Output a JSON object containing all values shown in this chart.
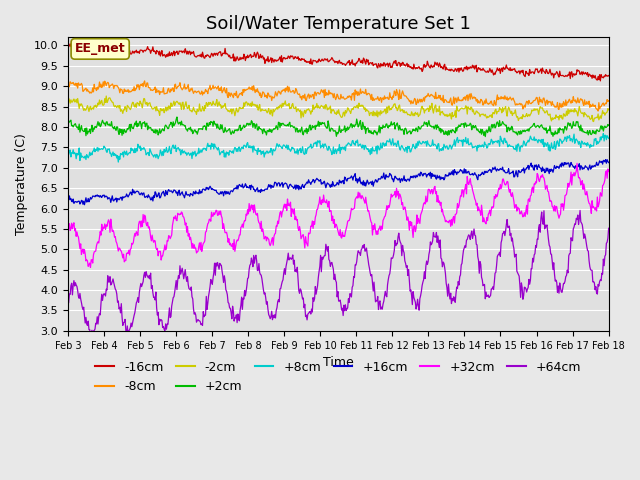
{
  "title": "Soil/Water Temperature Set 1",
  "xlabel": "Time",
  "ylabel": "Temperature (C)",
  "ylim": [
    3.0,
    10.2
  ],
  "xlim": [
    0,
    15
  ],
  "x_tick_labels": [
    "Feb 3",
    "Feb 4",
    "Feb 5",
    "Feb 6",
    "Feb 7",
    "Feb 8",
    "Feb 9",
    "Feb 10",
    "Feb 11",
    "Feb 12",
    "Feb 13",
    "Feb 14",
    "Feb 15",
    "Feb 16",
    "Feb 17",
    "Feb 18"
  ],
  "series": [
    {
      "label": "-16cm",
      "color": "#cc0000",
      "start": 9.95,
      "end": 9.25,
      "noise": 0.04,
      "osc_amp": 0.05,
      "osc_freq": 1.0
    },
    {
      "label": "-8cm",
      "color": "#ff8c00",
      "start": 9.0,
      "end": 8.55,
      "noise": 0.05,
      "osc_amp": 0.08,
      "osc_freq": 1.0
    },
    {
      "label": "-2cm",
      "color": "#cccc00",
      "start": 8.55,
      "end": 8.3,
      "noise": 0.05,
      "osc_amp": 0.1,
      "osc_freq": 1.0
    },
    {
      "label": "+2cm",
      "color": "#00bb00",
      "start": 8.0,
      "end": 7.95,
      "noise": 0.05,
      "osc_amp": 0.1,
      "osc_freq": 1.0
    },
    {
      "label": "+8cm",
      "color": "#00cccc",
      "start": 7.35,
      "end": 7.65,
      "noise": 0.05,
      "osc_amp": 0.09,
      "osc_freq": 1.0
    },
    {
      "label": "+16cm",
      "color": "#0000cc",
      "start": 6.2,
      "end": 7.1,
      "noise": 0.04,
      "osc_amp": 0.07,
      "osc_freq": 1.0
    },
    {
      "label": "+32cm",
      "color": "#ff00ff",
      "start": 5.1,
      "end": 6.5,
      "noise": 0.08,
      "osc_amp": 0.45,
      "osc_freq": 1.0
    },
    {
      "label": "+64cm",
      "color": "#9900cc",
      "start": 3.5,
      "end": 5.0,
      "noise": 0.1,
      "osc_amp": 0.75,
      "osc_freq": 1.0
    }
  ],
  "annotation_text": "EE_met",
  "bg_color": "#e8e8e8",
  "plot_bg_color": "#e0e0e0",
  "grid_color": "#ffffff",
  "title_fontsize": 13,
  "axis_fontsize": 9,
  "legend_fontsize": 9
}
